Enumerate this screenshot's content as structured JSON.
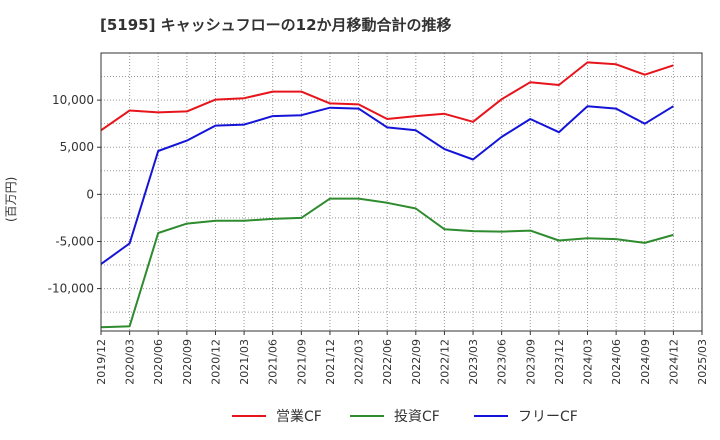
{
  "chart_data": {
    "type": "line",
    "title": "[5195]  キャッシュフローの12か月移動合計の推移",
    "xlabel": "",
    "ylabel": "(百万円)",
    "categories": [
      "2019/12",
      "2020/03",
      "2020/06",
      "2020/09",
      "2020/12",
      "2021/03",
      "2021/06",
      "2021/09",
      "2021/12",
      "2022/03",
      "2022/06",
      "2022/09",
      "2022/12",
      "2023/03",
      "2023/06",
      "2023/09",
      "2023/12",
      "2024/03",
      "2024/06",
      "2024/09",
      "2024/12",
      "2025/03"
    ],
    "ylim": [
      -14500,
      15000
    ],
    "yticks": [
      -10000,
      -5000,
      0,
      5000,
      10000
    ],
    "ytick_labels": [
      "-10,000",
      "-5,000",
      "0",
      "5,000",
      "10,000"
    ],
    "grid": true,
    "legend_position": "bottom",
    "series": [
      {
        "name": "営業CF",
        "color": "#e8141b",
        "values": [
          6800,
          8900,
          8700,
          8800,
          10050,
          10200,
          10900,
          10900,
          9650,
          9550,
          8000,
          8300,
          8550,
          7700,
          10100,
          11900,
          11600,
          14000,
          13800,
          12700,
          13700,
          null
        ]
      },
      {
        "name": "投資CF",
        "color": "#2e8b2e",
        "values": [
          -14100,
          -14000,
          -4100,
          -3100,
          -2800,
          -2800,
          -2600,
          -2500,
          -450,
          -450,
          -900,
          -1500,
          -3700,
          -3900,
          -3950,
          -3850,
          -4900,
          -4650,
          -4750,
          -5150,
          -4300,
          null
        ]
      },
      {
        "name": "フリーCF",
        "color": "#1414d8",
        "values": [
          -7400,
          -5200,
          4600,
          5700,
          7300,
          7400,
          8300,
          8400,
          9200,
          9100,
          7100,
          6800,
          4800,
          3700,
          6100,
          8000,
          6600,
          9350,
          9100,
          7500,
          9350,
          null
        ]
      }
    ]
  }
}
